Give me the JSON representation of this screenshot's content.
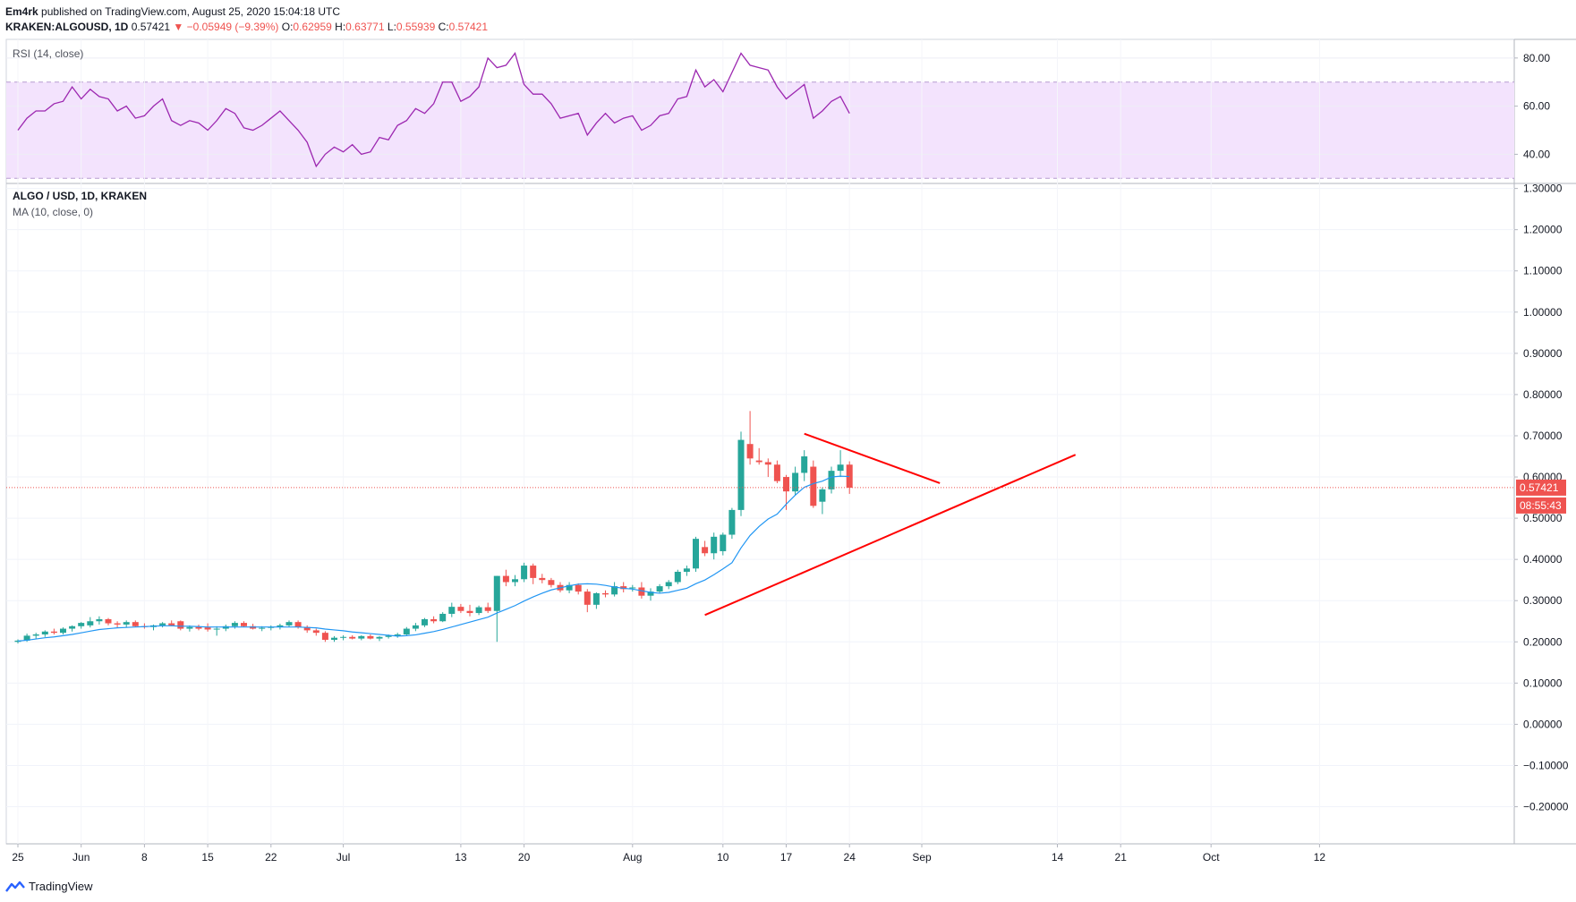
{
  "header": {
    "author": "Em4rk",
    "published": "published on TradingView.com, August 25, 2020 15:04:18 UTC",
    "symbol": "KRAKEN:ALGOUSD, 1D",
    "last": "0.57421",
    "change": "−0.05949 (−9.39%)",
    "ohlc": [
      {
        "k": "O:",
        "v": "0.62959"
      },
      {
        "k": "H:",
        "v": "0.63771"
      },
      {
        "k": "L:",
        "v": "0.55939"
      },
      {
        "k": "C:",
        "v": "0.57421"
      }
    ]
  },
  "rsi_pane": {
    "label": "RSI (14, close)"
  },
  "price_pane": {
    "title": "ALGO / USD, 1D, KRAKEN",
    "ma_label": "MA (10, close, 0)"
  },
  "price_tag": {
    "value": "0.57421",
    "countdown": "08:55:43"
  },
  "footer": {
    "brand": "TradingView"
  },
  "colors": {
    "up": "#26a69a",
    "down": "#ef5350",
    "ma": "#2196f3",
    "rsi": "#9c27b0",
    "rsi_band": "#f3e3fd",
    "trend": "#ff0000"
  },
  "chart_data": {
    "type": "candlestick",
    "symbol": "ALGO / USD",
    "interval": "1D",
    "x_ticks": [
      "25",
      "Jun",
      "8",
      "15",
      "22",
      "Jul",
      "13",
      "20",
      "Aug",
      "10",
      "17",
      "24",
      "Sep",
      "14",
      "21",
      "Oct",
      "12"
    ],
    "y_ticks": [
      "1.30000",
      "1.20000",
      "1.10000",
      "1.00000",
      "0.90000",
      "0.80000",
      "0.70000",
      "0.60000",
      "0.50000",
      "0.40000",
      "0.30000",
      "0.20000",
      "0.10000",
      "0.00000",
      "−0.10000",
      "−0.20000"
    ],
    "ylim": [
      -0.29,
      1.31
    ],
    "rsi_ticks": [
      "80.00",
      "60.00",
      "40.00"
    ],
    "rsi_ylim": [
      29,
      87
    ],
    "rsi_band": [
      30,
      70
    ],
    "last_price": 0.57421,
    "candles": [
      [
        0.2,
        0.206,
        0.196,
        0.203
      ],
      [
        0.203,
        0.22,
        0.2,
        0.215
      ],
      [
        0.215,
        0.222,
        0.208,
        0.218
      ],
      [
        0.218,
        0.228,
        0.212,
        0.225
      ],
      [
        0.225,
        0.232,
        0.218,
        0.222
      ],
      [
        0.222,
        0.235,
        0.218,
        0.232
      ],
      [
        0.232,
        0.24,
        0.225,
        0.238
      ],
      [
        0.238,
        0.248,
        0.232,
        0.246
      ],
      [
        0.24,
        0.26,
        0.235,
        0.25
      ],
      [
        0.25,
        0.262,
        0.242,
        0.255
      ],
      [
        0.255,
        0.258,
        0.24,
        0.245
      ],
      [
        0.245,
        0.25,
        0.235,
        0.242
      ],
      [
        0.242,
        0.252,
        0.235,
        0.248
      ],
      [
        0.248,
        0.252,
        0.236,
        0.238
      ],
      [
        0.238,
        0.245,
        0.232,
        0.236
      ],
      [
        0.236,
        0.242,
        0.228,
        0.24
      ],
      [
        0.24,
        0.248,
        0.235,
        0.245
      ],
      [
        0.245,
        0.252,
        0.238,
        0.24
      ],
      [
        0.25,
        0.252,
        0.228,
        0.232
      ],
      [
        0.232,
        0.24,
        0.225,
        0.236
      ],
      [
        0.236,
        0.242,
        0.228,
        0.232
      ],
      [
        0.235,
        0.245,
        0.225,
        0.23
      ],
      [
        0.23,
        0.238,
        0.215,
        0.232
      ],
      [
        0.232,
        0.242,
        0.226,
        0.238
      ],
      [
        0.238,
        0.25,
        0.232,
        0.246
      ],
      [
        0.246,
        0.25,
        0.236,
        0.238
      ],
      [
        0.238,
        0.244,
        0.23,
        0.232
      ],
      [
        0.232,
        0.238,
        0.226,
        0.234
      ],
      [
        0.234,
        0.24,
        0.228,
        0.236
      ],
      [
        0.236,
        0.244,
        0.23,
        0.24
      ],
      [
        0.24,
        0.252,
        0.236,
        0.248
      ],
      [
        0.248,
        0.252,
        0.232,
        0.236
      ],
      [
        0.236,
        0.24,
        0.222,
        0.228
      ],
      [
        0.228,
        0.232,
        0.215,
        0.222
      ],
      [
        0.222,
        0.226,
        0.2,
        0.205
      ],
      [
        0.205,
        0.214,
        0.2,
        0.21
      ],
      [
        0.21,
        0.216,
        0.204,
        0.212
      ],
      [
        0.212,
        0.216,
        0.206,
        0.208
      ],
      [
        0.208,
        0.216,
        0.204,
        0.214
      ],
      [
        0.214,
        0.218,
        0.206,
        0.208
      ],
      [
        0.208,
        0.214,
        0.202,
        0.212
      ],
      [
        0.212,
        0.218,
        0.208,
        0.215
      ],
      [
        0.215,
        0.222,
        0.21,
        0.218
      ],
      [
        0.218,
        0.236,
        0.214,
        0.232
      ],
      [
        0.232,
        0.246,
        0.226,
        0.24
      ],
      [
        0.24,
        0.258,
        0.236,
        0.255
      ],
      [
        0.255,
        0.262,
        0.245,
        0.25
      ],
      [
        0.25,
        0.272,
        0.248,
        0.268
      ],
      [
        0.268,
        0.295,
        0.26,
        0.285
      ],
      [
        0.285,
        0.292,
        0.27,
        0.275
      ],
      [
        0.275,
        0.29,
        0.262,
        0.27
      ],
      [
        0.27,
        0.288,
        0.265,
        0.284
      ],
      [
        0.284,
        0.295,
        0.27,
        0.275
      ],
      [
        0.275,
        0.36,
        0.2,
        0.36
      ],
      [
        0.36,
        0.375,
        0.335,
        0.345
      ],
      [
        0.345,
        0.362,
        0.335,
        0.352
      ],
      [
        0.352,
        0.392,
        0.345,
        0.385
      ],
      [
        0.385,
        0.39,
        0.34,
        0.355
      ],
      [
        0.355,
        0.365,
        0.342,
        0.35
      ],
      [
        0.35,
        0.355,
        0.332,
        0.338
      ],
      [
        0.338,
        0.345,
        0.32,
        0.325
      ],
      [
        0.325,
        0.345,
        0.318,
        0.338
      ],
      [
        0.338,
        0.342,
        0.315,
        0.322
      ],
      [
        0.322,
        0.328,
        0.272,
        0.29
      ],
      [
        0.29,
        0.32,
        0.28,
        0.318
      ],
      [
        0.318,
        0.325,
        0.308,
        0.315
      ],
      [
        0.315,
        0.345,
        0.31,
        0.335
      ],
      [
        0.335,
        0.345,
        0.32,
        0.328
      ],
      [
        0.33,
        0.338,
        0.322,
        0.332
      ],
      [
        0.332,
        0.345,
        0.305,
        0.312
      ],
      [
        0.312,
        0.33,
        0.3,
        0.322
      ],
      [
        0.322,
        0.34,
        0.318,
        0.335
      ],
      [
        0.335,
        0.35,
        0.328,
        0.345
      ],
      [
        0.345,
        0.375,
        0.34,
        0.37
      ],
      [
        0.37,
        0.385,
        0.36,
        0.378
      ],
      [
        0.378,
        0.455,
        0.37,
        0.45
      ],
      [
        0.43,
        0.445,
        0.408,
        0.415
      ],
      [
        0.415,
        0.465,
        0.4,
        0.455
      ],
      [
        0.42,
        0.465,
        0.41,
        0.46
      ],
      [
        0.46,
        0.525,
        0.45,
        0.52
      ],
      [
        0.52,
        0.71,
        0.505,
        0.69
      ],
      [
        0.68,
        0.76,
        0.63,
        0.645
      ],
      [
        0.64,
        0.67,
        0.63,
        0.636
      ],
      [
        0.636,
        0.645,
        0.6,
        0.63
      ],
      [
        0.63,
        0.64,
        0.585,
        0.59
      ],
      [
        0.6,
        0.605,
        0.52,
        0.565
      ],
      [
        0.565,
        0.625,
        0.555,
        0.61
      ],
      [
        0.61,
        0.665,
        0.59,
        0.65
      ],
      [
        0.625,
        0.64,
        0.525,
        0.53
      ],
      [
        0.54,
        0.575,
        0.51,
        0.57
      ],
      [
        0.57,
        0.625,
        0.56,
        0.615
      ],
      [
        0.615,
        0.665,
        0.6,
        0.63
      ],
      [
        0.63,
        0.638,
        0.559,
        0.574
      ]
    ],
    "ma10": [
      0.202,
      0.204,
      0.207,
      0.21,
      0.212,
      0.215,
      0.218,
      0.222,
      0.226,
      0.23,
      0.232,
      0.234,
      0.235,
      0.236,
      0.237,
      0.238,
      0.239,
      0.239,
      0.238,
      0.238,
      0.237,
      0.236,
      0.236,
      0.236,
      0.236,
      0.236,
      0.236,
      0.236,
      0.236,
      0.236,
      0.236,
      0.236,
      0.235,
      0.234,
      0.231,
      0.229,
      0.227,
      0.224,
      0.222,
      0.22,
      0.218,
      0.216,
      0.214,
      0.215,
      0.217,
      0.221,
      0.225,
      0.23,
      0.236,
      0.242,
      0.248,
      0.254,
      0.26,
      0.27,
      0.279,
      0.288,
      0.299,
      0.309,
      0.318,
      0.326,
      0.331,
      0.336,
      0.34,
      0.341,
      0.34,
      0.337,
      0.333,
      0.33,
      0.328,
      0.324,
      0.32,
      0.318,
      0.32,
      0.325,
      0.33,
      0.341,
      0.35,
      0.363,
      0.377,
      0.392,
      0.428,
      0.458,
      0.48,
      0.498,
      0.51,
      0.534,
      0.556,
      0.575,
      0.584,
      0.59,
      0.6,
      0.602,
      0.601
    ],
    "rsi": [
      50,
      55,
      58,
      58,
      61,
      62,
      68,
      63,
      67,
      64,
      63,
      58,
      60,
      55,
      56,
      60,
      63,
      54,
      52,
      54,
      53,
      50,
      54,
      59,
      57,
      51,
      50,
      52,
      55,
      58,
      54,
      50,
      45,
      35,
      40,
      43,
      41,
      44,
      40,
      41,
      47,
      46,
      52,
      54,
      59,
      57,
      61,
      70,
      70,
      62,
      64,
      68,
      80,
      76,
      77,
      82,
      69,
      65,
      65,
      61,
      55,
      56,
      57,
      48,
      53,
      57,
      53,
      55,
      56,
      50,
      52,
      56,
      57,
      63,
      64,
      75,
      68,
      71,
      66,
      74,
      82,
      77,
      76,
      75,
      68,
      63,
      66,
      69,
      55,
      58,
      62,
      64,
      57
    ],
    "trendlines": [
      {
        "from": [
          76,
          0.265
        ],
        "to": [
          117,
          0.654
        ]
      },
      {
        "from": [
          87,
          0.705
        ],
        "to": [
          102,
          0.585
        ]
      }
    ]
  }
}
